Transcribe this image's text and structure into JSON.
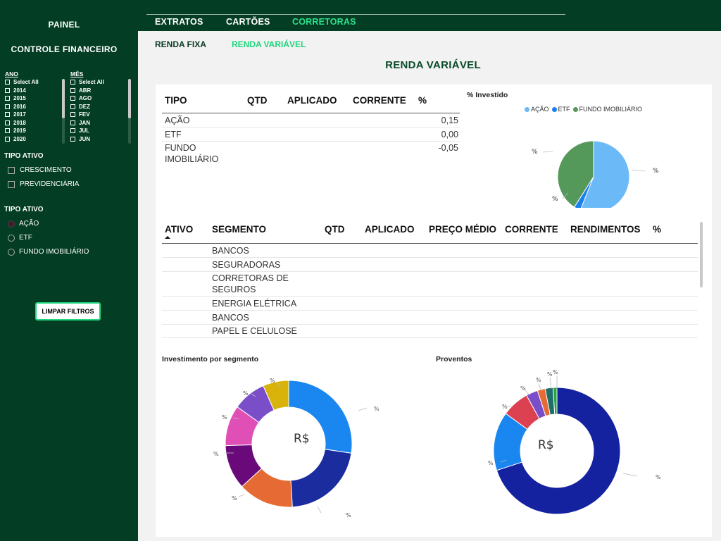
{
  "sidebar": {
    "title1": "PAINEL",
    "title2": "CONTROLE FINANCEIRO",
    "ano": {
      "header": "ANO",
      "items": [
        "Select All",
        "2014",
        "2015",
        "2016",
        "2017",
        "2018",
        "2019",
        "2020"
      ]
    },
    "mes": {
      "header": "MÊS",
      "items": [
        "Select All",
        "ABR",
        "AGO",
        "DEZ",
        "FEV",
        "JAN",
        "JUL",
        "JUN"
      ]
    },
    "tipo_ativo_1": {
      "title": "TIPO ATIVO",
      "options": [
        "CRESCIMENTO",
        "PREVIDENCIÁRIA"
      ]
    },
    "tipo_ativo_2": {
      "title": "TIPO ATIVO",
      "options": [
        "AÇÃO",
        "ETF",
        "FUNDO IMOBILIÁRIO"
      ],
      "selected": "AÇÃO"
    },
    "clear_button": "LIMPAR FILTROS"
  },
  "nav": {
    "tabs": [
      "EXTRATOS",
      "CARTÕES",
      "CORRETORAS"
    ],
    "active_tab": "CORRETORAS",
    "subtabs": [
      "RENDA FIXA",
      "RENDA VARIÁVEL"
    ],
    "active_subtab": "RENDA VARIÁVEL"
  },
  "page_title": "RENDA VARIÁVEL",
  "table1": {
    "headers": [
      "TIPO",
      "QTD",
      "APLICADO",
      "CORRENTE",
      "%"
    ],
    "rows": [
      {
        "tipo": "AÇÃO",
        "pct": "0,15"
      },
      {
        "tipo": "ETF",
        "pct": "0,00"
      },
      {
        "tipo_line1": "FUNDO",
        "tipo_line2": "IMOBILIÁRIO",
        "pct": "-0,05"
      }
    ]
  },
  "pie_investido": {
    "title": "% Investido",
    "legend": [
      "AÇÃO",
      "ETF",
      "FUNDO IMOBILIÁRIO"
    ],
    "label": "%"
  },
  "table2": {
    "headers": [
      "ATIVO",
      "SEGMENTO",
      "QTD",
      "APLICADO",
      "PREÇO MÉDIO",
      "CORRENTE",
      "RENDIMENTOS",
      "%"
    ],
    "rows": [
      {
        "segmento": "BANCOS"
      },
      {
        "segmento": "SEGURADORAS"
      },
      {
        "segmento_line1": "CORRETORAS DE",
        "segmento_line2": "SEGUROS"
      },
      {
        "segmento": "ENERGIA ELÉTRICA"
      },
      {
        "segmento": "BANCOS"
      },
      {
        "segmento": "PAPEL E CELULOSE"
      }
    ]
  },
  "donut_segmento": {
    "title": "Investimento por segmento",
    "center": "R$",
    "label": "%"
  },
  "donut_proventos": {
    "title": "Proventos",
    "center": "R$",
    "label": "%"
  },
  "colors": {
    "dark_green": "#033d23",
    "accent_green": "#1fd67c",
    "acao": "#6cb9f7",
    "etf": "#1a7ff0",
    "fundo": "#55995a"
  },
  "chart_data": [
    {
      "type": "pie",
      "title": "% Investido",
      "categories": [
        "AÇÃO",
        "ETF",
        "FUNDO IMOBILIÁRIO"
      ],
      "values": [
        56,
        3,
        41
      ],
      "colors": [
        "#6cb9f7",
        "#1a7ff0",
        "#55995a"
      ]
    },
    {
      "type": "pie",
      "title": "Investimento por segmento",
      "values": [
        29,
        23,
        15,
        12,
        11,
        9,
        7
      ],
      "colors": [
        "#1a86f0",
        "#1b2d9e",
        "#e66a33",
        "#6a0a7a",
        "#e04fb5",
        "#7a4ec9",
        "#d9b30a"
      ]
    },
    {
      "type": "pie",
      "title": "Proventos",
      "values": [
        70,
        15,
        7,
        3,
        2,
        2,
        1
      ],
      "colors": [
        "#1522a0",
        "#1a86f0",
        "#db4150",
        "#7a4ec9",
        "#e66a33",
        "#1e6e6a",
        "#2aa04a"
      ]
    }
  ]
}
